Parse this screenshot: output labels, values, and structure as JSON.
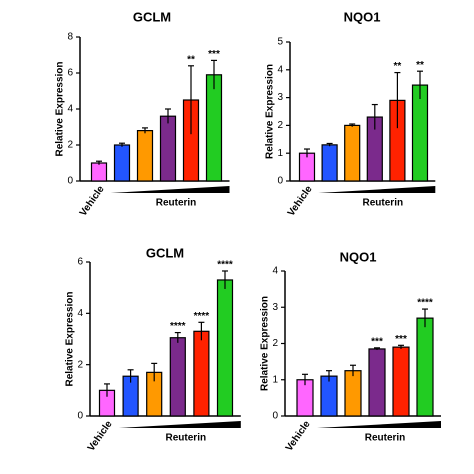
{
  "chart_data": [
    {
      "type": "bar",
      "title": "GCLM",
      "ylabel": "Relative Expression",
      "xlabel": "Reuterin",
      "categories": [
        "Vehicle",
        null,
        null,
        null,
        null,
        null
      ],
      "values": [
        1.0,
        2.0,
        2.8,
        3.6,
        4.5,
        5.9
      ],
      "errors": [
        0.1,
        0.1,
        0.15,
        0.4,
        1.9,
        0.8
      ],
      "annotations": [
        null,
        null,
        null,
        null,
        "**",
        "***"
      ],
      "colors": [
        "#ff66ff",
        "#2255ff",
        "#ff9900",
        "#7b2a8c",
        "#ff2200",
        "#22cc22"
      ],
      "ylim": [
        0,
        8
      ],
      "yticks": [
        0,
        2,
        4,
        6,
        8
      ]
    },
    {
      "type": "bar",
      "title": "NQO1",
      "ylabel": "Relative Expression",
      "xlabel": "Reuterin",
      "categories": [
        "Vehicle",
        null,
        null,
        null,
        null,
        null
      ],
      "values": [
        1.0,
        1.3,
        2.0,
        2.3,
        2.9,
        3.45
      ],
      "errors": [
        0.15,
        0.05,
        0.05,
        0.45,
        1.0,
        0.5
      ],
      "annotations": [
        null,
        null,
        null,
        null,
        "**",
        "**"
      ],
      "colors": [
        "#ff66ff",
        "#2255ff",
        "#ff9900",
        "#7b2a8c",
        "#ff2200",
        "#22cc22"
      ],
      "ylim": [
        0,
        5
      ],
      "yticks": [
        0,
        1,
        2,
        3,
        4,
        5
      ]
    },
    {
      "type": "bar",
      "title": "GCLM",
      "ylabel": "Relative Expression",
      "xlabel": "Reuterin",
      "categories": [
        "Vehicle",
        null,
        null,
        null,
        null,
        null
      ],
      "values": [
        1.0,
        1.55,
        1.7,
        3.05,
        3.3,
        5.3
      ],
      "errors": [
        0.25,
        0.25,
        0.35,
        0.2,
        0.35,
        0.35
      ],
      "annotations": [
        null,
        null,
        null,
        "****",
        "****",
        "****"
      ],
      "colors": [
        "#ff66ff",
        "#2255ff",
        "#ff9900",
        "#7b2a8c",
        "#ff2200",
        "#22cc22"
      ],
      "ylim": [
        0,
        6
      ],
      "yticks": [
        0,
        2,
        4,
        6
      ]
    },
    {
      "type": "bar",
      "title": "NQO1",
      "ylabel": "Relative Expression",
      "xlabel": "Reuterin",
      "categories": [
        "Vehicle",
        null,
        null,
        null,
        null,
        null
      ],
      "values": [
        1.0,
        1.1,
        1.25,
        1.85,
        1.9,
        2.7
      ],
      "errors": [
        0.15,
        0.15,
        0.15,
        0.03,
        0.05,
        0.25
      ],
      "annotations": [
        null,
        null,
        null,
        "***",
        "***",
        "****"
      ],
      "colors": [
        "#ff66ff",
        "#2255ff",
        "#ff9900",
        "#7b2a8c",
        "#ff2200",
        "#22cc22"
      ],
      "ylim": [
        0,
        4
      ],
      "yticks": [
        0,
        1,
        2,
        3,
        4
      ]
    }
  ]
}
